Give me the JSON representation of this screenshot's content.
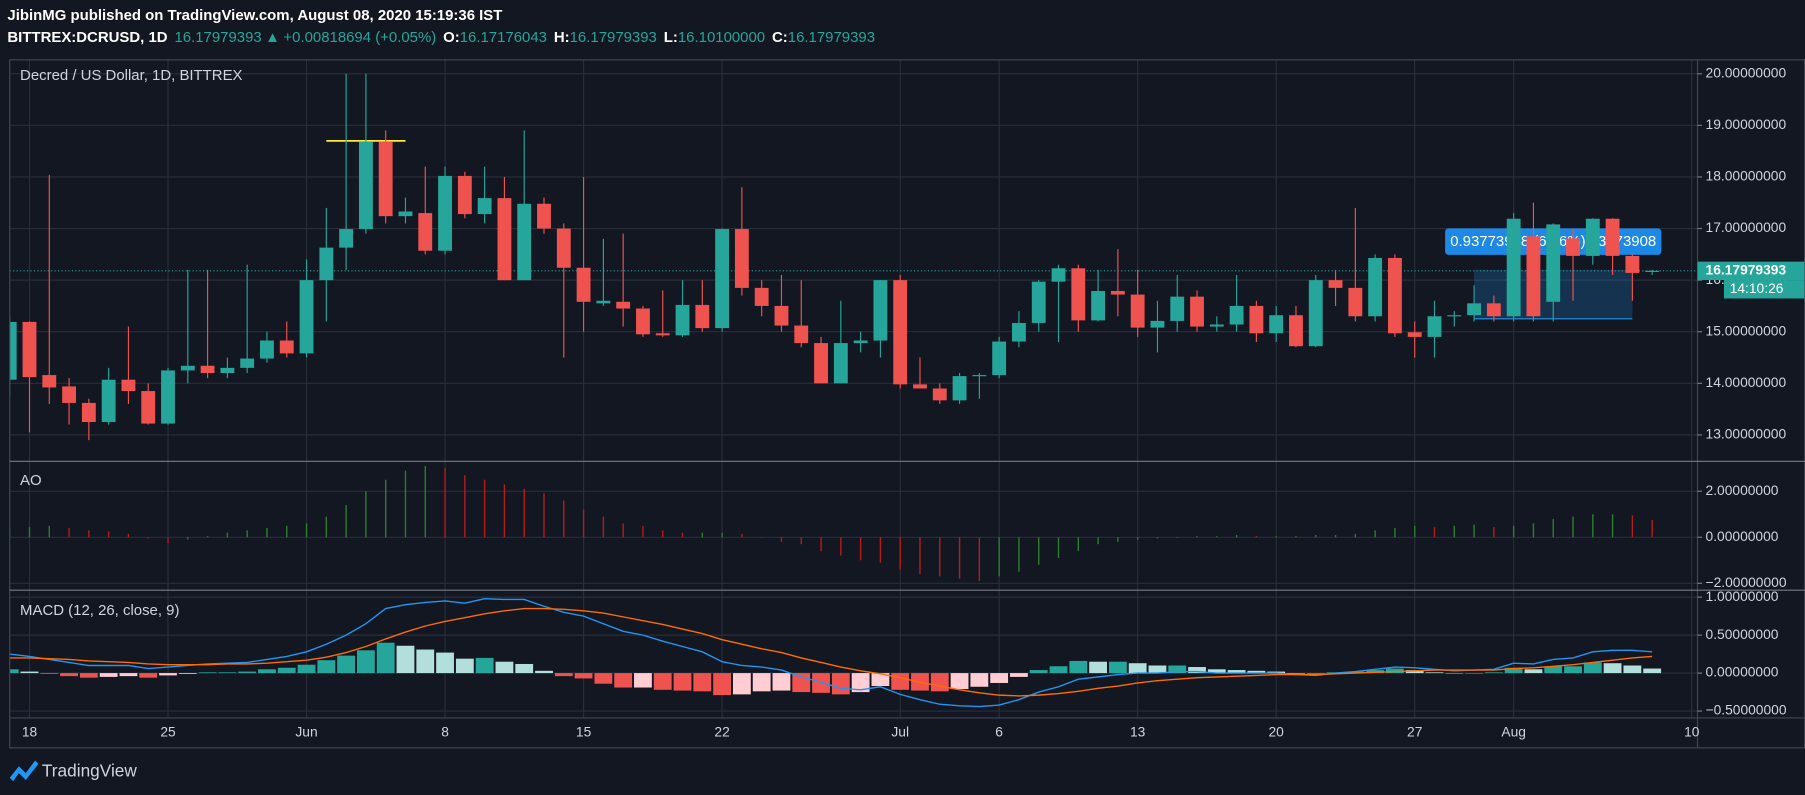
{
  "header": {
    "published": "JibinMG published on TradingView.com, August 08, 2020 15:19:36 IST",
    "symbol": "BITTREX:DCRUSD, 1D",
    "price": "16.17979393",
    "arrow": "▲",
    "change": "+0.00818694 (+0.05%)",
    "ohlc": [
      {
        "label": "O:",
        "value": "16.17176043"
      },
      {
        "label": "H:",
        "value": "16.17979393"
      },
      {
        "label": "L:",
        "value": "16.10100000"
      },
      {
        "label": "C:",
        "value": "16.17979393"
      }
    ]
  },
  "footer": {
    "brand": "TradingView"
  },
  "chart_data": [
    {
      "type": "candlestick",
      "title": "Decred / US Dollar, 1D, BITTREX",
      "x": [
        "2020-05-17",
        "2020-05-18",
        "2020-05-19",
        "2020-05-20",
        "2020-05-21",
        "2020-05-22",
        "2020-05-23",
        "2020-05-24",
        "2020-05-25",
        "2020-05-26",
        "2020-05-27",
        "2020-05-28",
        "2020-05-29",
        "2020-05-30",
        "2020-05-31",
        "2020-06-01",
        "2020-06-02",
        "2020-06-03",
        "2020-06-04",
        "2020-06-05",
        "2020-06-06",
        "2020-06-07",
        "2020-06-08",
        "2020-06-09",
        "2020-06-10",
        "2020-06-11",
        "2020-06-12",
        "2020-06-13",
        "2020-06-14",
        "2020-06-15",
        "2020-06-16",
        "2020-06-17",
        "2020-06-18",
        "2020-06-19",
        "2020-06-20",
        "2020-06-21",
        "2020-06-22",
        "2020-06-23",
        "2020-06-24",
        "2020-06-25",
        "2020-06-26",
        "2020-06-27",
        "2020-06-28",
        "2020-06-29",
        "2020-06-30",
        "2020-07-01",
        "2020-07-02",
        "2020-07-03",
        "2020-07-04",
        "2020-07-05",
        "2020-07-06",
        "2020-07-07",
        "2020-07-08",
        "2020-07-09",
        "2020-07-10",
        "2020-07-11",
        "2020-07-12",
        "2020-07-13",
        "2020-07-14",
        "2020-07-15",
        "2020-07-16",
        "2020-07-17",
        "2020-07-18",
        "2020-07-19",
        "2020-07-20",
        "2020-07-21",
        "2020-07-22",
        "2020-07-23",
        "2020-07-24",
        "2020-07-25",
        "2020-07-26",
        "2020-07-27",
        "2020-07-28",
        "2020-07-29",
        "2020-07-30",
        "2020-07-31",
        "2020-08-01",
        "2020-08-02",
        "2020-08-03",
        "2020-08-04",
        "2020-08-05",
        "2020-08-06",
        "2020-08-07",
        "2020-08-08"
      ],
      "open": [
        14.07,
        15.19,
        14.16,
        13.94,
        13.62,
        13.25,
        14.07,
        13.85,
        13.22,
        14.25,
        14.34,
        14.2,
        14.3,
        14.48,
        14.83,
        14.58,
        16.0,
        16.63,
        16.99,
        18.68,
        17.24,
        17.3,
        16.57,
        18.02,
        17.28,
        17.59,
        16.0,
        17.48,
        17.0,
        16.24,
        15.55,
        15.58,
        15.45,
        14.97,
        14.93,
        15.52,
        15.07,
        16.99,
        15.85,
        15.5,
        15.12,
        14.78,
        14.0,
        14.78,
        14.83,
        16.0,
        13.98,
        13.9,
        13.67,
        14.14,
        14.16,
        14.81,
        15.17,
        15.97,
        16.23,
        15.22,
        15.79,
        15.72,
        15.08,
        15.21,
        15.68,
        15.1,
        15.14,
        15.5,
        14.97,
        15.32,
        14.72,
        16.0,
        15.85,
        15.3,
        16.43,
        14.99,
        14.9,
        15.3,
        15.32,
        15.55,
        15.3,
        16.85,
        15.58,
        16.81,
        16.47,
        17.19,
        16.47,
        16.17
      ],
      "high": [
        15.3,
        15.2,
        18.04,
        14.1,
        13.7,
        14.3,
        15.1,
        14.0,
        14.3,
        16.2,
        16.2,
        14.5,
        16.3,
        15.0,
        15.2,
        16.4,
        17.4,
        20.0,
        20.0,
        18.9,
        17.6,
        18.2,
        18.2,
        18.1,
        18.2,
        18.0,
        18.9,
        17.6,
        17.1,
        18.0,
        16.8,
        16.9,
        15.5,
        15.8,
        16.0,
        16.0,
        17.0,
        17.8,
        16.0,
        16.1,
        16.0,
        14.9,
        15.6,
        15.0,
        16.0,
        16.1,
        14.5,
        14.0,
        14.2,
        14.2,
        14.9,
        15.4,
        16.0,
        16.3,
        16.3,
        16.2,
        16.6,
        16.2,
        15.6,
        16.1,
        15.8,
        15.3,
        16.1,
        15.6,
        15.5,
        15.5,
        16.1,
        16.2,
        17.4,
        16.5,
        16.5,
        15.2,
        15.6,
        15.4,
        15.9,
        15.7,
        17.3,
        17.5,
        17.1,
        17.0,
        17.2,
        17.2,
        16.5,
        16.2
      ],
      "low": [
        13.75,
        13.05,
        13.6,
        13.2,
        12.9,
        13.2,
        13.6,
        13.2,
        13.2,
        14.0,
        14.1,
        14.1,
        14.2,
        14.4,
        14.5,
        14.5,
        15.2,
        16.2,
        16.9,
        17.1,
        17.1,
        16.5,
        16.5,
        17.2,
        17.1,
        16.0,
        16.0,
        16.9,
        14.5,
        15.0,
        15.5,
        15.1,
        14.9,
        14.9,
        14.9,
        15.0,
        15.0,
        15.7,
        15.3,
        15.0,
        14.7,
        14.0,
        14.0,
        14.6,
        14.5,
        13.9,
        13.9,
        13.6,
        13.6,
        13.7,
        14.1,
        14.7,
        15.0,
        14.8,
        15.0,
        15.2,
        15.3,
        14.9,
        14.6,
        15.0,
        15.0,
        15.0,
        15.0,
        14.8,
        14.8,
        14.7,
        14.7,
        15.5,
        15.2,
        15.2,
        14.9,
        14.5,
        14.5,
        15.1,
        15.2,
        15.2,
        15.2,
        15.2,
        15.2,
        15.6,
        16.3,
        16.1,
        15.6,
        16.1
      ],
      "close": [
        15.19,
        14.12,
        13.92,
        13.62,
        13.25,
        14.07,
        13.85,
        13.22,
        14.25,
        14.34,
        14.2,
        14.3,
        14.48,
        14.83,
        14.58,
        16.0,
        16.63,
        16.99,
        18.68,
        17.24,
        17.33,
        16.57,
        18.02,
        17.28,
        17.59,
        16.0,
        17.48,
        17.0,
        16.24,
        15.58,
        15.6,
        15.45,
        14.95,
        14.93,
        15.52,
        15.07,
        16.99,
        15.85,
        15.5,
        15.12,
        14.78,
        14.0,
        14.78,
        14.83,
        16.0,
        13.98,
        13.9,
        13.67,
        14.14,
        14.16,
        14.81,
        15.17,
        15.97,
        16.23,
        15.22,
        15.79,
        15.72,
        15.08,
        15.21,
        15.68,
        15.1,
        15.14,
        15.5,
        14.97,
        15.32,
        14.72,
        16.0,
        15.85,
        15.3,
        16.43,
        14.97,
        14.9,
        15.3,
        15.32,
        15.55,
        15.3,
        17.19,
        15.3,
        17.08,
        16.47,
        17.19,
        16.47,
        16.14,
        16.18
      ],
      "up_color": "#26a69a",
      "down_color": "#ef5350",
      "xlim": [
        "2020-05-17",
        "2020-08-10"
      ],
      "xticks": [
        {
          "value": "2020-05-18",
          "label": "18"
        },
        {
          "value": "2020-05-25",
          "label": "25"
        },
        {
          "value": "2020-06-01",
          "label": "Jun"
        },
        {
          "value": "2020-06-08",
          "label": "8"
        },
        {
          "value": "2020-06-15",
          "label": "15"
        },
        {
          "value": "2020-06-22",
          "label": "22"
        },
        {
          "value": "2020-07-01",
          "label": "Jul"
        },
        {
          "value": "2020-07-06",
          "label": "6"
        },
        {
          "value": "2020-07-13",
          "label": "13"
        },
        {
          "value": "2020-07-20",
          "label": "20"
        },
        {
          "value": "2020-07-27",
          "label": "27"
        },
        {
          "value": "2020-08-01",
          "label": "Aug"
        },
        {
          "value": "2020-08-10",
          "label": "10"
        }
      ],
      "ylim": [
        12.51,
        20.27
      ],
      "yticks": [
        {
          "value": 13,
          "label": "13.00000000"
        },
        {
          "value": 14,
          "label": "14.00000000"
        },
        {
          "value": 15,
          "label": "15.00000000"
        },
        {
          "value": 16,
          "label": "16.00000000"
        },
        {
          "value": 17,
          "label": "17.00000000"
        },
        {
          "value": 18,
          "label": "18.00000000"
        },
        {
          "value": 19,
          "label": "19.00000000"
        },
        {
          "value": 20,
          "label": "20.00000000"
        }
      ],
      "grid": true,
      "last_price": {
        "value": 16.17979393,
        "label": "16.17979393",
        "countdown": "14:10:26",
        "color": "#26a69a"
      },
      "annotations": [
        {
          "type": "hline",
          "value": 18.7,
          "from": "2020-06-02",
          "to": "2020-06-06",
          "color": "#ffeb3b"
        },
        {
          "type": "measure",
          "top": 16.2,
          "bottom": 15.25,
          "from": "2020-07-30",
          "to": "2020-08-07",
          "color": "#2196f3",
          "label": "0.93773908 (6.16%) 93773908"
        }
      ]
    },
    {
      "type": "histogram",
      "title": "AO",
      "values": [
        0.4,
        0.45,
        0.5,
        0.4,
        0.3,
        0.25,
        0.15,
        -0.05,
        -0.25,
        -0.1,
        0.05,
        0.2,
        0.3,
        0.4,
        0.5,
        0.6,
        0.9,
        1.4,
        2.0,
        2.5,
        2.9,
        3.1,
        3.0,
        2.7,
        2.5,
        2.3,
        2.1,
        1.9,
        1.6,
        1.2,
        0.9,
        0.6,
        0.5,
        0.3,
        0.2,
        0.2,
        0.2,
        0.15,
        0.0,
        -0.2,
        -0.3,
        -0.6,
        -0.8,
        -1.0,
        -1.1,
        -1.4,
        -1.6,
        -1.7,
        -1.8,
        -1.9,
        -1.7,
        -1.5,
        -1.2,
        -0.9,
        -0.6,
        -0.3,
        -0.2,
        -0.1,
        -0.05,
        0.0,
        0.05,
        0.05,
        0.1,
        0.05,
        0.05,
        0.05,
        0.1,
        0.1,
        0.15,
        0.3,
        0.4,
        0.5,
        0.45,
        0.5,
        0.55,
        0.45,
        0.5,
        0.6,
        0.8,
        0.9,
        1.0,
        1.0,
        0.95,
        0.75
      ],
      "up_color": "#2e7d32",
      "down_color": "#b71c1c",
      "ylim": [
        -2.25,
        3.25
      ],
      "yticks": [
        {
          "value": -2,
          "label": "−2.00000000"
        },
        {
          "value": 0,
          "label": "0.00000000"
        },
        {
          "value": 2,
          "label": "2.00000000"
        }
      ],
      "grid": true
    },
    {
      "type": "macd",
      "title": "MACD (12, 26, close, 9)",
      "histogram": [
        0.05,
        0.02,
        -0.01,
        -0.04,
        -0.06,
        -0.05,
        -0.04,
        -0.06,
        -0.03,
        -0.01,
        0.01,
        0.01,
        0.02,
        0.05,
        0.07,
        0.11,
        0.17,
        0.23,
        0.3,
        0.4,
        0.36,
        0.31,
        0.27,
        0.19,
        0.2,
        0.15,
        0.12,
        0.03,
        -0.04,
        -0.07,
        -0.14,
        -0.19,
        -0.19,
        -0.22,
        -0.23,
        -0.24,
        -0.29,
        -0.28,
        -0.24,
        -0.23,
        -0.25,
        -0.26,
        -0.28,
        -0.25,
        -0.17,
        -0.22,
        -0.23,
        -0.24,
        -0.21,
        -0.18,
        -0.13,
        -0.05,
        0.04,
        0.09,
        0.16,
        0.15,
        0.15,
        0.13,
        0.1,
        0.1,
        0.08,
        0.05,
        0.04,
        0.03,
        0.02,
        0.0,
        -0.01,
        0.01,
        0.02,
        0.04,
        0.06,
        0.04,
        0.01,
        -0.01,
        0.0,
        0.01,
        0.07,
        0.05,
        0.09,
        0.09,
        0.14,
        0.13,
        0.1,
        0.06
      ],
      "histogram_colors": [
        "#26a69a",
        "#b2dfdb",
        "#ffcdd2",
        "#ef5350"
      ],
      "series": [
        {
          "name": "MACD",
          "color": "#2196f3",
          "values": [
            0.25,
            0.22,
            0.18,
            0.14,
            0.1,
            0.1,
            0.1,
            0.06,
            0.08,
            0.1,
            0.12,
            0.13,
            0.14,
            0.18,
            0.22,
            0.28,
            0.38,
            0.5,
            0.65,
            0.85,
            0.9,
            0.93,
            0.95,
            0.92,
            0.98,
            0.97,
            0.97,
            0.88,
            0.8,
            0.75,
            0.65,
            0.55,
            0.5,
            0.42,
            0.35,
            0.28,
            0.15,
            0.1,
            0.08,
            0.04,
            -0.05,
            -0.12,
            -0.2,
            -0.22,
            -0.18,
            -0.28,
            -0.35,
            -0.41,
            -0.43,
            -0.44,
            -0.42,
            -0.35,
            -0.25,
            -0.18,
            -0.08,
            -0.05,
            -0.02,
            0.0,
            0.0,
            0.02,
            0.02,
            0.0,
            0.0,
            0.0,
            0.0,
            -0.02,
            -0.03,
            0.0,
            0.02,
            0.05,
            0.08,
            0.07,
            0.05,
            0.03,
            0.04,
            0.05,
            0.13,
            0.12,
            0.18,
            0.2,
            0.28,
            0.3,
            0.3,
            0.28
          ]
        },
        {
          "name": "Signal",
          "color": "#ff6d00",
          "values": [
            0.2,
            0.2,
            0.19,
            0.18,
            0.16,
            0.15,
            0.14,
            0.12,
            0.11,
            0.11,
            0.11,
            0.12,
            0.12,
            0.13,
            0.15,
            0.17,
            0.21,
            0.27,
            0.35,
            0.45,
            0.54,
            0.62,
            0.68,
            0.73,
            0.78,
            0.82,
            0.85,
            0.85,
            0.84,
            0.82,
            0.79,
            0.74,
            0.69,
            0.64,
            0.58,
            0.52,
            0.44,
            0.38,
            0.32,
            0.27,
            0.2,
            0.14,
            0.08,
            0.03,
            -0.01,
            -0.06,
            -0.12,
            -0.17,
            -0.22,
            -0.26,
            -0.29,
            -0.3,
            -0.29,
            -0.27,
            -0.24,
            -0.2,
            -0.17,
            -0.13,
            -0.1,
            -0.08,
            -0.06,
            -0.05,
            -0.04,
            -0.03,
            -0.02,
            -0.02,
            -0.02,
            -0.01,
            0.0,
            0.01,
            0.02,
            0.03,
            0.04,
            0.04,
            0.04,
            0.04,
            0.06,
            0.07,
            0.09,
            0.11,
            0.14,
            0.17,
            0.2,
            0.22
          ]
        }
      ],
      "ylim": [
        -0.59,
        1.076
      ],
      "yticks": [
        {
          "value": -0.5,
          "label": "−0.50000000"
        },
        {
          "value": 0,
          "label": "0.00000000"
        },
        {
          "value": 0.5,
          "label": "0.50000000"
        },
        {
          "value": 1,
          "label": "1.00000000"
        }
      ],
      "grid": true
    }
  ]
}
